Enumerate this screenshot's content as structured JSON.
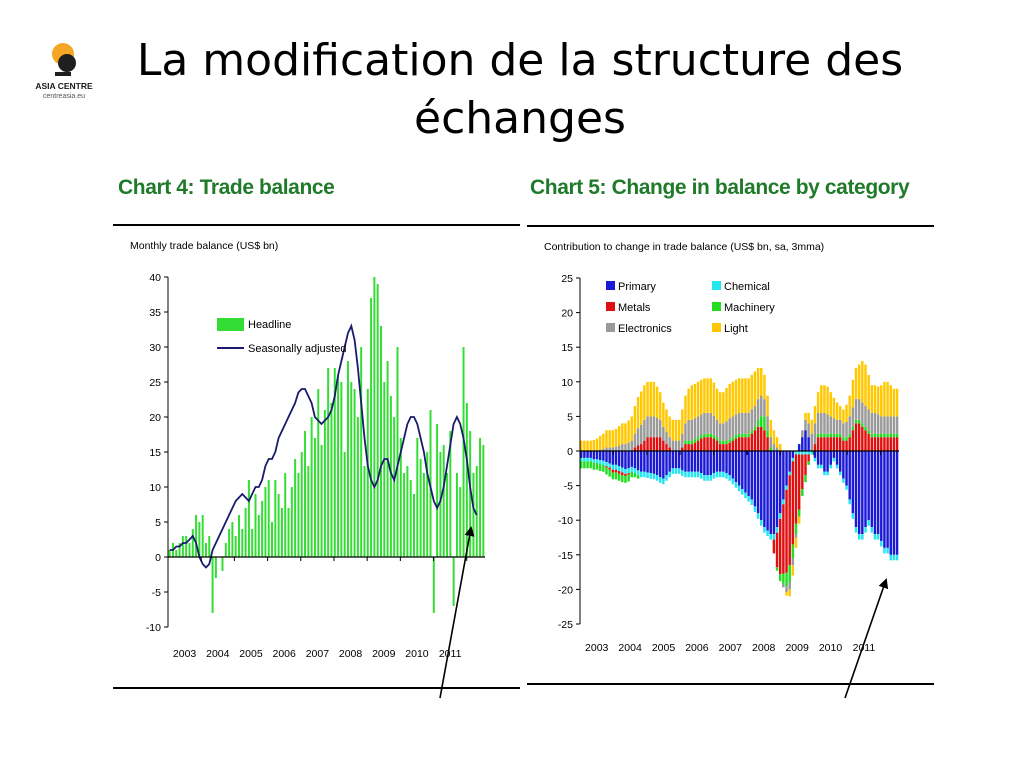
{
  "slide": {
    "title": "La modification de la structure des échanges",
    "logo": {
      "name": "ASIA CENTRE",
      "url": "centreasia.eu"
    }
  },
  "colors": {
    "heading": "#1f7a2a",
    "headline": "#33dd33",
    "seasonally_adjusted": "#1a1a6e",
    "primary": "#1a1ad6",
    "chemical": "#22e6f0",
    "metals": "#e01010",
    "machinery": "#22dd22",
    "electronics": "#9a9a9a",
    "light": "#ffc800"
  },
  "chart_data": [
    {
      "type": "bar",
      "heading": "Chart 4: Trade balance",
      "subtitle": "Monthly trade balance (US$ bn)",
      "ylim": [
        -10,
        40
      ],
      "yticks": [
        "40",
        "35",
        "30",
        "25",
        "20",
        "15",
        "10",
        "5",
        "0",
        "-5",
        "-10"
      ],
      "xticks": [
        "2003",
        "2004",
        "2005",
        "2006",
        "2007",
        "2008",
        "2009",
        "2010",
        "2011"
      ],
      "legend_position": "upper-left",
      "grid": false,
      "series": [
        {
          "name": "Headline",
          "kind": "bar",
          "values": [
            1,
            2,
            1,
            2,
            3,
            3,
            2,
            4,
            6,
            5,
            6,
            2,
            3,
            -8,
            -3,
            0,
            -2,
            2,
            4,
            5,
            3,
            6,
            4,
            7,
            11,
            4,
            9,
            6,
            8,
            10,
            11,
            5,
            11,
            9,
            7,
            12,
            7,
            10,
            14,
            12,
            15,
            18,
            13,
            20,
            17,
            24,
            16,
            21,
            27,
            22,
            27,
            26,
            25,
            15,
            28,
            25,
            24,
            20,
            30,
            13,
            24,
            37,
            40,
            39,
            33,
            25,
            28,
            23,
            20,
            30,
            17,
            12,
            13,
            11,
            9,
            17,
            14,
            12,
            15,
            21,
            -8,
            19,
            15,
            16,
            12,
            18,
            -7,
            12,
            10,
            30,
            22,
            18,
            12,
            13,
            17,
            16
          ]
        },
        {
          "name": "Seasonally adjusted",
          "kind": "line",
          "values": [
            1,
            1,
            1.5,
            1.5,
            2,
            2,
            2.5,
            3,
            2,
            0,
            -1,
            -1.5,
            -1,
            1,
            2,
            3,
            4,
            5,
            6,
            7,
            8,
            8.5,
            9,
            8.5,
            8,
            9,
            10,
            10,
            11,
            13,
            14,
            14,
            15,
            17,
            18,
            19,
            20,
            21,
            22,
            23.5,
            24,
            24,
            23,
            22,
            20,
            19.5,
            19,
            19.5,
            20,
            21,
            23,
            26,
            28,
            30,
            32,
            33,
            31,
            27,
            22,
            17,
            13,
            11,
            10,
            11,
            13,
            14,
            14,
            12,
            11,
            13,
            15,
            17,
            19,
            20,
            20,
            19,
            17,
            15,
            12,
            10,
            8,
            7,
            8,
            10,
            13,
            16,
            19,
            20,
            19,
            17,
            14,
            10,
            7,
            6
          ]
        }
      ]
    },
    {
      "type": "bar",
      "stacked": true,
      "heading": "Chart 5: Change in balance by category",
      "subtitle": "Contribution to change in trade balance (US$ bn, sa, 3mma)",
      "ylim": [
        -25,
        25
      ],
      "yticks": [
        "25",
        "20",
        "15",
        "10",
        "5",
        "0",
        "-5",
        "-10",
        "-15",
        "-20",
        "-25"
      ],
      "xticks": [
        "2003",
        "2004",
        "2005",
        "2006",
        "2007",
        "2008",
        "2009",
        "2010",
        "2011"
      ],
      "legend_position": "upper-left",
      "grid": false,
      "series": [
        {
          "name": "Primary",
          "values": [
            -1,
            -1,
            -1,
            -1,
            -1.2,
            -1.2,
            -1.3,
            -1.4,
            -1.6,
            -1.8,
            -2,
            -2,
            -2.2,
            -2.4,
            -2.6,
            -2.5,
            -2.3,
            -2.5,
            -2.8,
            -3,
            -3,
            -3.1,
            -3.2,
            -3.3,
            -3.5,
            -3.8,
            -4,
            -3.5,
            -3,
            -2.5,
            -2.5,
            -2.5,
            -2.8,
            -3,
            -3,
            -3,
            -3,
            -3,
            -3.2,
            -3.5,
            -3.5,
            -3.5,
            -3.2,
            -3,
            -3,
            -3,
            -3.2,
            -3.5,
            -4,
            -4.5,
            -5,
            -5.5,
            -6,
            -6.5,
            -7,
            -8,
            -9,
            -10,
            -11,
            -11.5,
            -12,
            -12,
            -11,
            -9,
            -7,
            -5,
            -3,
            -1,
            0,
            1,
            2,
            3,
            2,
            0,
            -1,
            -2,
            -2,
            -3,
            -3,
            -2,
            -1,
            -2,
            -3,
            -4,
            -5,
            -7,
            -9,
            -11,
            -12,
            -12,
            -11,
            -10,
            -11,
            -12,
            -12,
            -13,
            -14,
            -14,
            -15,
            -15,
            -15
          ]
        },
        {
          "name": "Chemical",
          "values": [
            -0.5,
            -0.5,
            -0.5,
            -0.5,
            -0.5,
            -0.5,
            -0.6,
            -0.6,
            -0.6,
            -0.6,
            -0.7,
            -0.7,
            -0.7,
            -0.7,
            -0.7,
            -0.7,
            -0.7,
            -0.7,
            -0.7,
            -0.8,
            -0.8,
            -0.8,
            -0.8,
            -0.8,
            -0.8,
            -0.8,
            -0.8,
            -0.8,
            -0.8,
            -0.8,
            -0.8,
            -0.8,
            -0.8,
            -0.8,
            -0.8,
            -0.8,
            -0.8,
            -0.8,
            -0.8,
            -0.8,
            -0.8,
            -0.8,
            -0.8,
            -0.8,
            -0.8,
            -0.8,
            -0.8,
            -0.8,
            -0.8,
            -0.8,
            -0.8,
            -0.8,
            -0.8,
            -0.8,
            -0.8,
            -0.8,
            -0.8,
            -0.8,
            -0.8,
            -0.8,
            -0.8,
            -0.8,
            -0.8,
            -0.8,
            -0.7,
            -0.6,
            -0.5,
            -0.5,
            -0.5,
            -0.5,
            -0.5,
            -0.5,
            -0.5,
            -0.5,
            -0.5,
            -0.5,
            -0.5,
            -0.5,
            -0.5,
            -0.5,
            -0.5,
            -0.5,
            -0.5,
            -0.6,
            -0.6,
            -0.7,
            -0.8,
            -0.8,
            -0.8,
            -0.8,
            -0.8,
            -0.8,
            -0.8,
            -0.8,
            -0.8,
            -0.8,
            -0.8,
            -0.8,
            -0.8,
            -0.8,
            -0.8
          ]
        },
        {
          "name": "Metals",
          "values": [
            0,
            0,
            0,
            0,
            0,
            0,
            0,
            0,
            -0.2,
            -0.3,
            -0.4,
            -0.4,
            -0.4,
            -0.4,
            -0.3,
            -0.2,
            0,
            0.5,
            0.8,
            1,
            1.5,
            2,
            2,
            2,
            2,
            2,
            1.5,
            1,
            0.5,
            0,
            0,
            0,
            0.5,
            1,
            1,
            1,
            1.2,
            1.5,
            1.8,
            2,
            2,
            2,
            1.8,
            1.5,
            1,
            1,
            1,
            1.2,
            1.5,
            1.8,
            2,
            2,
            2,
            2,
            2.5,
            3,
            3.5,
            3.5,
            3,
            2,
            0,
            -2,
            -5,
            -8,
            -10,
            -12,
            -13,
            -12,
            -10,
            -8,
            -5,
            -3,
            -1,
            0,
            1,
            2,
            2,
            2,
            2,
            2,
            2,
            2,
            2,
            1.5,
            1.5,
            2,
            3,
            4,
            4,
            3.5,
            3,
            2.5,
            2,
            2,
            2,
            2,
            2,
            2,
            2,
            2,
            2
          ]
        },
        {
          "name": "Machinery",
          "values": [
            -1,
            -1,
            -1,
            -1,
            -1,
            -1,
            -1,
            -1,
            -1,
            -1,
            -1,
            -1,
            -1,
            -1,
            -1,
            -1,
            -0.8,
            -0.6,
            -0.5,
            0,
            0,
            0,
            0,
            0,
            0,
            0,
            0,
            0,
            0,
            0,
            0,
            0,
            0,
            0.5,
            0.5,
            0.5,
            0.5,
            0.5,
            0.5,
            0.5,
            0.5,
            0.5,
            0.5,
            0.5,
            0.5,
            0.5,
            0.5,
            0.5,
            0.5,
            0.5,
            0.5,
            0.5,
            0.5,
            0.5,
            0.5,
            0.5,
            1,
            1.5,
            2,
            1,
            0.5,
            0,
            -0.5,
            -1,
            -1.5,
            -2,
            -2.5,
            -2,
            -1.5,
            -1,
            -1,
            -1,
            -0.5,
            0,
            0,
            0.5,
            0.5,
            0.5,
            0.5,
            0.5,
            0.5,
            0.5,
            0.5,
            0.5,
            0.5,
            0.5,
            0.5,
            0.5,
            0.5,
            0.5,
            0.5,
            0.5,
            0.5,
            0.5,
            0.5,
            0.5,
            0.5,
            0.5,
            0.5,
            0.5,
            0.5
          ]
        },
        {
          "name": "Electronics",
          "values": [
            0,
            0,
            0,
            0,
            0,
            0,
            0.2,
            0.3,
            0.5,
            0.5,
            0.5,
            0.6,
            0.8,
            1,
            1,
            1.2,
            1.5,
            2,
            2.5,
            2.8,
            3,
            3,
            3,
            3,
            2.8,
            2.5,
            2,
            1.8,
            1.5,
            1.5,
            1.5,
            1.5,
            2,
            2.5,
            3,
            3,
            3,
            3,
            3,
            3,
            3,
            3,
            2.8,
            2.5,
            2.5,
            2.5,
            2.8,
            3,
            3,
            3,
            3,
            3,
            3,
            3,
            3,
            3,
            3,
            3,
            2.5,
            2,
            1.5,
            1,
            0.5,
            0,
            -0.5,
            -0.8,
            -1,
            -1,
            -0.5,
            0,
            1,
            1.5,
            2,
            2.5,
            3,
            3,
            3,
            3,
            2.8,
            2.5,
            2.2,
            2,
            2,
            2,
            2.2,
            2.5,
            2.8,
            3,
            3,
            3,
            3,
            3,
            3,
            3,
            2.8,
            2.5,
            2.5,
            2.5,
            2.5,
            2.5,
            2.5
          ]
        },
        {
          "name": "Light",
          "values": [
            1.5,
            1.5,
            1.5,
            1.5,
            1.6,
            1.8,
            2,
            2.2,
            2.5,
            2.5,
            2.5,
            2.6,
            2.8,
            3,
            3,
            3.2,
            3.5,
            4,
            4.5,
            4.8,
            5,
            5,
            5,
            5,
            4.5,
            4,
            3.5,
            3.2,
            3,
            3,
            3,
            3,
            3.5,
            4,
            4.5,
            5,
            5,
            5,
            5,
            5,
            5,
            5,
            4.8,
            4.5,
            4.5,
            4.5,
            4.8,
            5,
            5,
            5,
            5,
            5,
            5,
            5,
            5,
            5,
            4.5,
            4,
            3.5,
            3,
            2.5,
            2,
            1.5,
            1,
            0,
            -0.5,
            -1,
            -1.5,
            -1.5,
            -1,
            0,
            1,
            1.5,
            2,
            2.5,
            3,
            4,
            4,
            4,
            3.5,
            3,
            2.5,
            2,
            2,
            2.5,
            3,
            4,
            4.5,
            5,
            6,
            6,
            5,
            4,
            4,
            4,
            4.5,
            5,
            5,
            4.5,
            4,
            4
          ]
        }
      ]
    }
  ]
}
